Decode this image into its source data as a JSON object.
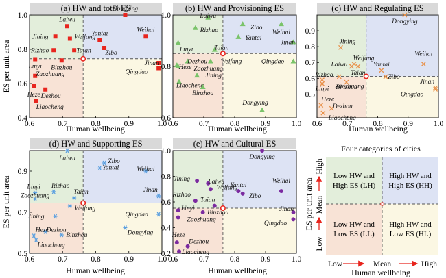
{
  "colors": {
    "lh": "#e3eedb",
    "hh": "#dde3f4",
    "ll": "#f8e3d6",
    "hl": "#fbf7e3",
    "title_bg": "#d9d9d9",
    "mean_line": "#555555",
    "mean_point": "#e8251e"
  },
  "axis_labels": {
    "y": "ES per unit area",
    "x": "Human wellbeing"
  },
  "chart_data": [
    {
      "type": "scatter",
      "title": "(a) HW and total ES",
      "marker": "square",
      "color": "#e8251e",
      "xlim": [
        0.6,
        1.0
      ],
      "ylim": [
        0.4,
        1.0
      ],
      "yticks": [
        "0.4",
        "0.6",
        "0.8",
        "1.0"
      ],
      "mean": {
        "x": 0.762,
        "y": 0.745
      },
      "points": [
        {
          "name": "Dongying",
          "x": 0.889,
          "y": 1.0,
          "lx": 0,
          "ly": -7
        },
        {
          "name": "Laiwu",
          "x": 0.714,
          "y": 0.935,
          "lx": 0,
          "ly": -7
        },
        {
          "name": "Jining",
          "x": 0.678,
          "y": 0.875,
          "lx": -22,
          "ly": 3
        },
        {
          "name": "Weifang",
          "x": 0.722,
          "y": 0.862,
          "lx": 22,
          "ly": 0
        },
        {
          "name": "Yantai",
          "x": 0.812,
          "y": 0.855,
          "lx": 0,
          "ly": -7
        },
        {
          "name": "Weihai",
          "x": 0.951,
          "y": 0.875,
          "lx": 0,
          "ly": -7
        },
        {
          "name": "Rizhao",
          "x": 0.673,
          "y": 0.795,
          "lx": -20,
          "ly": 3
        },
        {
          "name": "Taian",
          "x": 0.735,
          "y": 0.795,
          "lx": 14,
          "ly": 3
        },
        {
          "name": "Zibo",
          "x": 0.826,
          "y": 0.808,
          "lx": 10,
          "ly": 10
        },
        {
          "name": "Jinan",
          "x": 0.99,
          "y": 0.72,
          "lx": -10,
          "ly": 3
        },
        {
          "name": "Qingdao",
          "x": 0.99,
          "y": 0.69,
          "lx": -32,
          "ly": 8
        },
        {
          "name": "Linyi",
          "x": 0.617,
          "y": 0.742,
          "lx": 0,
          "ly": 13
        },
        {
          "name": "Binzhou",
          "x": 0.697,
          "y": 0.735,
          "lx": 0,
          "ly": 13
        },
        {
          "name": "Zaozhuang",
          "x": 0.617,
          "y": 0.645,
          "lx": 22,
          "ly": 0
        },
        {
          "name": "Heze",
          "x": 0.613,
          "y": 0.585,
          "lx": 0,
          "ly": 15
        },
        {
          "name": "Dezhou",
          "x": 0.648,
          "y": 0.565,
          "lx": 8,
          "ly": 12
        },
        {
          "name": "Liaocheng",
          "x": 0.62,
          "y": 0.5,
          "lx": 20,
          "ly": 12
        }
      ]
    },
    {
      "type": "scatter",
      "title": "(b) HW and Provisioning ES",
      "marker": "triangle",
      "color": "#7ac36a",
      "xlim": [
        0.6,
        1.0
      ],
      "ylim": [
        0.6,
        1.0
      ],
      "yticks": [
        "0.6",
        "0.8",
        "1.0"
      ],
      "mean": {
        "x": 0.762,
        "y": 0.85
      },
      "points": [
        {
          "name": "Laiwu",
          "x": 0.714,
          "y": 0.99,
          "lx": 0,
          "ly": 0
        },
        {
          "name": "Zibo",
          "x": 0.826,
          "y": 0.965,
          "lx": 20,
          "ly": 8
        },
        {
          "name": "Weihai",
          "x": 0.951,
          "y": 0.965,
          "lx": 0,
          "ly": 15
        },
        {
          "name": "Rizhao",
          "x": 0.673,
          "y": 0.95,
          "lx": 20,
          "ly": 6
        },
        {
          "name": "Yantai",
          "x": 0.812,
          "y": 0.915,
          "lx": 22,
          "ly": 4
        },
        {
          "name": "Linyi",
          "x": 0.617,
          "y": 0.892,
          "lx": 12,
          "ly": 12
        },
        {
          "name": "Jinan",
          "x": 0.99,
          "y": 0.895,
          "lx": -8,
          "ly": 3
        },
        {
          "name": "Taian",
          "x": 0.735,
          "y": 0.865,
          "lx": 10,
          "ly": 0
        },
        {
          "name": "Qingdao",
          "x": 0.99,
          "y": 0.82,
          "lx": -30,
          "ly": 3
        },
        {
          "name": "Dezhou",
          "x": 0.648,
          "y": 0.82,
          "lx": 14,
          "ly": 3
        },
        {
          "name": "Heze",
          "x": 0.613,
          "y": 0.805,
          "lx": 12,
          "ly": 6
        },
        {
          "name": "Weifang",
          "x": 0.722,
          "y": 0.82,
          "lx": 30,
          "ly": 3
        },
        {
          "name": "Zaozhuang",
          "x": 0.617,
          "y": 0.8,
          "lx": 44,
          "ly": 6
        },
        {
          "name": "Jining",
          "x": 0.678,
          "y": 0.765,
          "lx": 24,
          "ly": 3
        },
        {
          "name": "Liaocheng",
          "x": 0.62,
          "y": 0.74,
          "lx": 16,
          "ly": 8
        },
        {
          "name": "Binzhou",
          "x": 0.697,
          "y": 0.72,
          "lx": 0,
          "ly": 12
        },
        {
          "name": "Dongying",
          "x": 0.889,
          "y": 0.63,
          "lx": -10,
          "ly": -8
        }
      ]
    },
    {
      "type": "scatter",
      "title": "(c) HW and Regulating ES",
      "marker": "x",
      "color": "#e8914a",
      "xlim": [
        0.6,
        1.0
      ],
      "ylim": [
        0.35,
        1.0
      ],
      "yticks": [
        "0.5",
        "0.6",
        "0.7",
        "0.8",
        "0.9"
      ],
      "mean": {
        "x": 0.762,
        "y": 0.612
      },
      "points": [
        {
          "name": "Dongying",
          "x": 0.889,
          "y": 1.0,
          "lx": 0,
          "ly": 12
        },
        {
          "name": "Jining",
          "x": 0.678,
          "y": 0.795,
          "lx": 10,
          "ly": -6
        },
        {
          "name": "Weifang",
          "x": 0.722,
          "y": 0.69,
          "lx": 14,
          "ly": -6
        },
        {
          "name": "Laiwu",
          "x": 0.714,
          "y": 0.675,
          "lx": -18,
          "ly": 0
        },
        {
          "name": "Taian",
          "x": 0.735,
          "y": 0.675,
          "lx": 0,
          "ly": 12
        },
        {
          "name": "Weihai",
          "x": 0.951,
          "y": 0.69,
          "lx": 0,
          "ly": -12
        },
        {
          "name": "Yantai",
          "x": 0.812,
          "y": 0.65,
          "lx": 0,
          "ly": -6
        },
        {
          "name": "Rizhao",
          "x": 0.673,
          "y": 0.61,
          "lx": -22,
          "ly": 0
        },
        {
          "name": "Linyi",
          "x": 0.617,
          "y": 0.59,
          "lx": 0,
          "ly": 16
        },
        {
          "name": "Zibo",
          "x": 0.826,
          "y": 0.61,
          "lx": 12,
          "ly": 3
        },
        {
          "name": "Binzhou",
          "x": 0.697,
          "y": 0.575,
          "lx": 0,
          "ly": 10
        },
        {
          "name": "Zaozhuang",
          "x": 0.617,
          "y": 0.565,
          "lx": 40,
          "ly": 6
        },
        {
          "name": "Jinan",
          "x": 0.99,
          "y": 0.54,
          "lx": -12,
          "ly": -6
        },
        {
          "name": "Qingdao",
          "x": 0.99,
          "y": 0.53,
          "lx": -34,
          "ly": 10
        },
        {
          "name": "Heze",
          "x": 0.613,
          "y": 0.43,
          "lx": 10,
          "ly": -6
        },
        {
          "name": "Dezhou",
          "x": 0.648,
          "y": 0.41,
          "lx": 16,
          "ly": 0
        },
        {
          "name": "Liaocheng",
          "x": 0.62,
          "y": 0.38,
          "lx": 28,
          "ly": 10
        }
      ]
    },
    {
      "type": "scatter",
      "title": "(d) HW and Supporting ES",
      "marker": "asterisk",
      "color": "#5a9fe0",
      "xlim": [
        0.6,
        1.0
      ],
      "ylim": [
        0.5,
        1.0
      ],
      "yticks": [
        "0.5",
        "0.7",
        "0.9"
      ],
      "mean": {
        "x": 0.762,
        "y": 0.745
      },
      "points": [
        {
          "name": "Laiwu",
          "x": 0.714,
          "y": 1.0,
          "lx": 0,
          "ly": 14
        },
        {
          "name": "Zibo",
          "x": 0.826,
          "y": 0.94,
          "lx": 14,
          "ly": 0
        },
        {
          "name": "Yantai",
          "x": 0.812,
          "y": 0.915,
          "lx": 16,
          "ly": 2
        },
        {
          "name": "Weihai",
          "x": 0.951,
          "y": 0.9,
          "lx": 0,
          "ly": 0
        },
        {
          "name": "Rizhao",
          "x": 0.673,
          "y": 0.8,
          "lx": 10,
          "ly": -6
        },
        {
          "name": "Linyi",
          "x": 0.617,
          "y": 0.795,
          "lx": -2,
          "ly": -6
        },
        {
          "name": "Taian",
          "x": 0.735,
          "y": 0.77,
          "lx": 10,
          "ly": -6
        },
        {
          "name": "Zaozhuang",
          "x": 0.617,
          "y": 0.765,
          "lx": 0,
          "ly": -2
        },
        {
          "name": "Jinan",
          "x": 0.99,
          "y": 0.78,
          "lx": -12,
          "ly": -6
        },
        {
          "name": "Weifang",
          "x": 0.722,
          "y": 0.73,
          "lx": 22,
          "ly": 6
        },
        {
          "name": "Qingdao",
          "x": 0.99,
          "y": 0.69,
          "lx": -32,
          "ly": 3
        },
        {
          "name": "Jining",
          "x": 0.678,
          "y": 0.68,
          "lx": -28,
          "ly": 3
        },
        {
          "name": "Dezhou",
          "x": 0.648,
          "y": 0.605,
          "lx": 16,
          "ly": 0
        },
        {
          "name": "Heze",
          "x": 0.613,
          "y": 0.585,
          "lx": 12,
          "ly": -6
        },
        {
          "name": "Binzhou",
          "x": 0.697,
          "y": 0.59,
          "lx": 22,
          "ly": 3
        },
        {
          "name": "Dongying",
          "x": 0.889,
          "y": 0.625,
          "lx": 22,
          "ly": 10
        },
        {
          "name": "Liaocheng",
          "x": 0.62,
          "y": 0.565,
          "lx": 22,
          "ly": 10
        }
      ]
    },
    {
      "type": "scatter",
      "title": "(e) HW and Cultural ES",
      "marker": "circle",
      "color": "#7b2aa0",
      "xlim": [
        0.6,
        1.0
      ],
      "ylim": [
        0.2,
        1.0
      ],
      "yticks": [
        "0.2",
        "0.4",
        "0.6",
        "0.8",
        "1.0"
      ],
      "mean": {
        "x": 0.762,
        "y": 0.552
      },
      "points": [
        {
          "name": "Dongying",
          "x": 0.889,
          "y": 1.0,
          "lx": 0,
          "ly": 12
        },
        {
          "name": "Jining",
          "x": 0.678,
          "y": 0.765,
          "lx": -22,
          "ly": 0
        },
        {
          "name": "Laiwu",
          "x": 0.714,
          "y": 0.745,
          "lx": 12,
          "ly": 0
        },
        {
          "name": "Weifang",
          "x": 0.722,
          "y": 0.7,
          "lx": 24,
          "ly": 0
        },
        {
          "name": "Yantai",
          "x": 0.812,
          "y": 0.685,
          "lx": 0,
          "ly": -6
        },
        {
          "name": "Zibo",
          "x": 0.826,
          "y": 0.665,
          "lx": 18,
          "ly": 6
        },
        {
          "name": "Weihai",
          "x": 0.951,
          "y": 0.685,
          "lx": 0,
          "ly": -12
        },
        {
          "name": "Rizhao",
          "x": 0.673,
          "y": 0.61,
          "lx": -20,
          "ly": -6
        },
        {
          "name": "Taian",
          "x": 0.735,
          "y": 0.57,
          "lx": -10,
          "ly": -6
        },
        {
          "name": "Linyi",
          "x": 0.617,
          "y": 0.535,
          "lx": 14,
          "ly": 0
        },
        {
          "name": "Binzhou",
          "x": 0.697,
          "y": 0.52,
          "lx": 22,
          "ly": 3
        },
        {
          "name": "Zaozhuang",
          "x": 0.617,
          "y": 0.48,
          "lx": 34,
          "ly": 6
        },
        {
          "name": "Jinan",
          "x": 0.99,
          "y": 0.52,
          "lx": -10,
          "ly": -2
        },
        {
          "name": "Qingdao",
          "x": 0.99,
          "y": 0.465,
          "lx": -26,
          "ly": 8
        },
        {
          "name": "Heze",
          "x": 0.613,
          "y": 0.285,
          "lx": 2,
          "ly": -8
        },
        {
          "name": "Dezhou",
          "x": 0.648,
          "y": 0.255,
          "lx": 16,
          "ly": -4
        },
        {
          "name": "Liaocheng",
          "x": 0.62,
          "y": 0.215,
          "lx": 24,
          "ly": 4
        }
      ]
    }
  ],
  "legend_panel": {
    "title": "Four categories of cities",
    "lh": [
      "Low HW and",
      "High ES (LH)"
    ],
    "hh": [
      "High HW and",
      "High ES (HH)"
    ],
    "ll": [
      "Low HW and",
      "Low ES (LL)"
    ],
    "hl": [
      "High HW and",
      "Low ES (HL)"
    ],
    "x_low": "Low",
    "x_mean": "Mean",
    "x_high": "High",
    "y_low": "Low",
    "y_mean": "Mean",
    "y_high": "High",
    "xlabel": "Human wellbeing",
    "ylabel": "ES per unit area"
  }
}
